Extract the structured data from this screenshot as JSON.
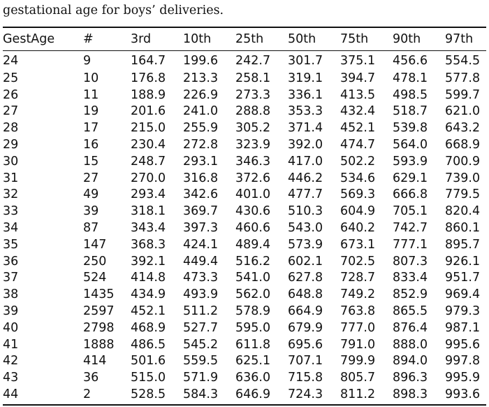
{
  "caption": "gestational age for boys’ deliveries.",
  "table": {
    "headers": [
      "GestAge",
      "#",
      "3rd",
      "10th",
      "25th",
      "50th",
      "75th",
      "90th",
      "97th"
    ],
    "rows": [
      [
        "24",
        "9",
        "164.7",
        "199.6",
        "242.7",
        "301.7",
        "375.1",
        "456.6",
        "554.5"
      ],
      [
        "25",
        "10",
        "176.8",
        "213.3",
        "258.1",
        "319.1",
        "394.7",
        "478.1",
        "577.8"
      ],
      [
        "26",
        "11",
        "188.9",
        "226.9",
        "273.3",
        "336.1",
        "413.5",
        "498.5",
        "599.7"
      ],
      [
        "27",
        "19",
        "201.6",
        "241.0",
        "288.8",
        "353.3",
        "432.4",
        "518.7",
        "621.0"
      ],
      [
        "28",
        "17",
        "215.0",
        "255.9",
        "305.2",
        "371.4",
        "452.1",
        "539.8",
        "643.2"
      ],
      [
        "29",
        "16",
        "230.4",
        "272.8",
        "323.9",
        "392.0",
        "474.7",
        "564.0",
        "668.9"
      ],
      [
        "30",
        "15",
        "248.7",
        "293.1",
        "346.3",
        "417.0",
        "502.2",
        "593.9",
        "700.9"
      ],
      [
        "31",
        "27",
        "270.0",
        "316.8",
        "372.6",
        "446.2",
        "534.6",
        "629.1",
        "739.0"
      ],
      [
        "32",
        "49",
        "293.4",
        "342.6",
        "401.0",
        "477.7",
        "569.3",
        "666.8",
        "779.5"
      ],
      [
        "33",
        "39",
        "318.1",
        "369.7",
        "430.6",
        "510.3",
        "604.9",
        "705.1",
        "820.4"
      ],
      [
        "34",
        "87",
        "343.4",
        "397.3",
        "460.6",
        "543.0",
        "640.2",
        "742.7",
        "860.1"
      ],
      [
        "35",
        "147",
        "368.3",
        "424.1",
        "489.4",
        "573.9",
        "673.1",
        "777.1",
        "895.7"
      ],
      [
        "36",
        "250",
        "392.1",
        "449.4",
        "516.2",
        "602.1",
        "702.5",
        "807.3",
        "926.1"
      ],
      [
        "37",
        "524",
        "414.8",
        "473.3",
        "541.0",
        "627.8",
        "728.7",
        "833.4",
        "951.7"
      ],
      [
        "38",
        "1435",
        "434.9",
        "493.9",
        "562.0",
        "648.8",
        "749.2",
        "852.9",
        "969.4"
      ],
      [
        "39",
        "2597",
        "452.1",
        "511.2",
        "578.9",
        "664.9",
        "763.8",
        "865.5",
        "979.3"
      ],
      [
        "40",
        "2798",
        "468.9",
        "527.7",
        "595.0",
        "679.9",
        "777.0",
        "876.4",
        "987.1"
      ],
      [
        "41",
        "1888",
        "486.5",
        "545.2",
        "611.8",
        "695.6",
        "791.0",
        "888.0",
        "995.6"
      ],
      [
        "42",
        "414",
        "501.6",
        "559.5",
        "625.1",
        "707.1",
        "799.9",
        "894.0",
        "997.8"
      ],
      [
        "43",
        "36",
        "515.0",
        "571.9",
        "636.0",
        "715.8",
        "805.7",
        "896.3",
        "995.9"
      ],
      [
        "44",
        "2",
        "528.5",
        "584.3",
        "646.9",
        "724.3",
        "811.2",
        "898.3",
        "993.6"
      ]
    ]
  }
}
